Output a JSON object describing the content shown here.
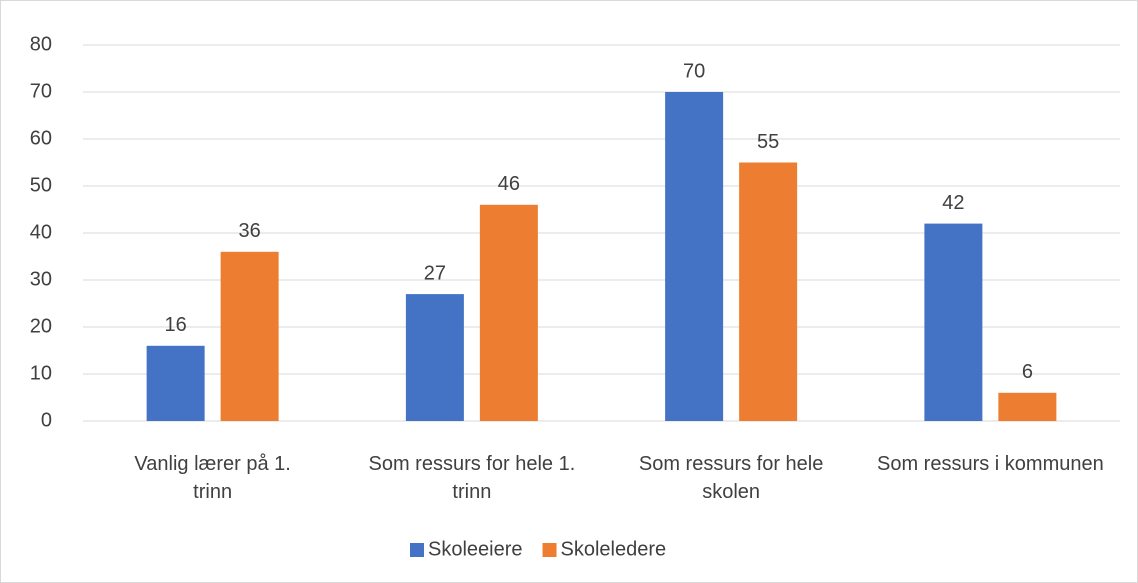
{
  "chart_data": {
    "type": "bar",
    "categories": [
      "Vanlig lærer på 1. trinn",
      "Som ressurs for hele 1. trinn",
      "Som ressurs for hele skolen",
      "Som ressurs i kommunen"
    ],
    "series": [
      {
        "name": "Skoleeiere",
        "color": "#4472c4",
        "values": [
          16,
          27,
          70,
          42
        ]
      },
      {
        "name": "Skoleledere",
        "color": "#ed7d31",
        "values": [
          36,
          46,
          55,
          6
        ]
      }
    ],
    "ylim": [
      0,
      80
    ],
    "yticks": [
      0,
      10,
      20,
      30,
      40,
      50,
      60,
      70,
      80
    ],
    "grid": true,
    "legend": "bottom"
  }
}
